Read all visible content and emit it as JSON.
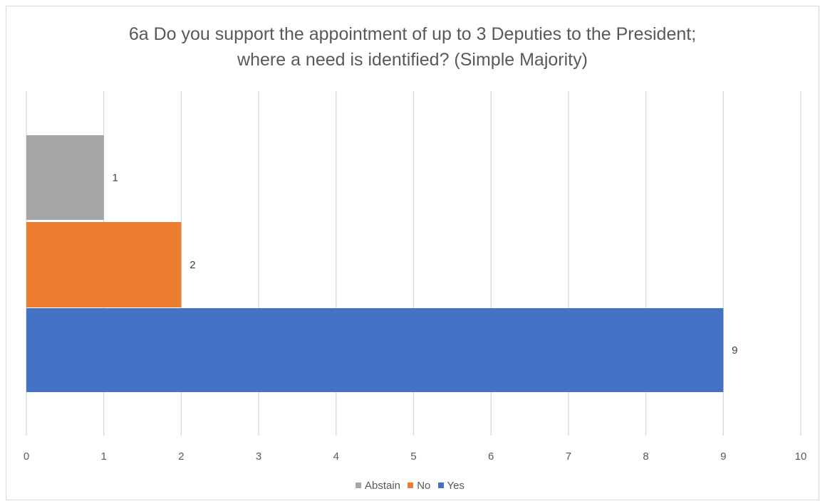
{
  "chart_data": {
    "type": "bar",
    "orientation": "horizontal",
    "title": "6a Do you support the appointment of up to 3 Deputies to the President;\nwhere a need is identified?  (Simple Majority)",
    "categories": [
      "Abstain",
      "No",
      "Yes"
    ],
    "series": [
      {
        "name": "Abstain",
        "value": 1,
        "color": "#a5a5a5"
      },
      {
        "name": "No",
        "value": 2,
        "color": "#ed7d31"
      },
      {
        "name": "Yes",
        "value": 9,
        "color": "#4472c4"
      }
    ],
    "data_labels": [
      "1",
      "2",
      "9"
    ],
    "xlim": [
      0,
      10
    ],
    "x_ticks": [
      "0",
      "1",
      "2",
      "3",
      "4",
      "5",
      "6",
      "7",
      "8",
      "9",
      "10"
    ],
    "grid": "vertical",
    "legend": "bottom"
  }
}
